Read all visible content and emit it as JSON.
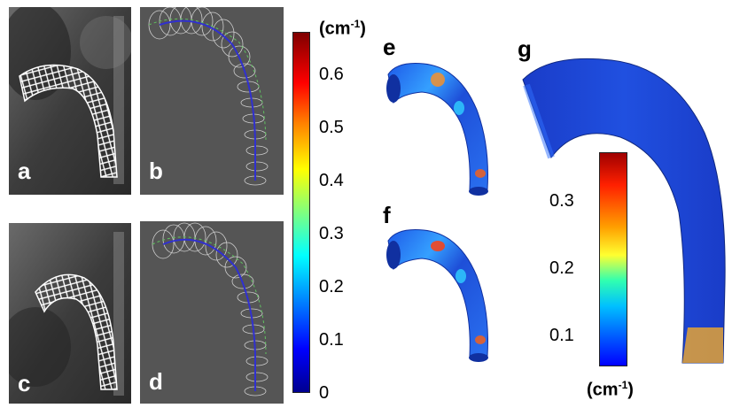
{
  "panels": {
    "a": "a",
    "b": "b",
    "c": "c",
    "d": "d",
    "e": "e",
    "f": "f",
    "g": "g"
  },
  "colorbar_main": {
    "unit_text": "(cm",
    "unit_exp": "-1",
    "unit_close": ")",
    "ticks": [
      "0.6",
      "0.5",
      "0.4",
      "0.3",
      "0.2",
      "0.1",
      "0"
    ]
  },
  "colorbar_g": {
    "unit_text": "(cm",
    "unit_exp": "-1",
    "unit_close": ")",
    "ticks": [
      "0.3",
      "0.2",
      "0.1"
    ]
  },
  "colors": {
    "ct_bg": "#3a3a3a",
    "gray_bg": "#555555",
    "aorta_blue": "#1e4fd8",
    "centerline": "#3030d0",
    "ring_green": "#60c060"
  }
}
